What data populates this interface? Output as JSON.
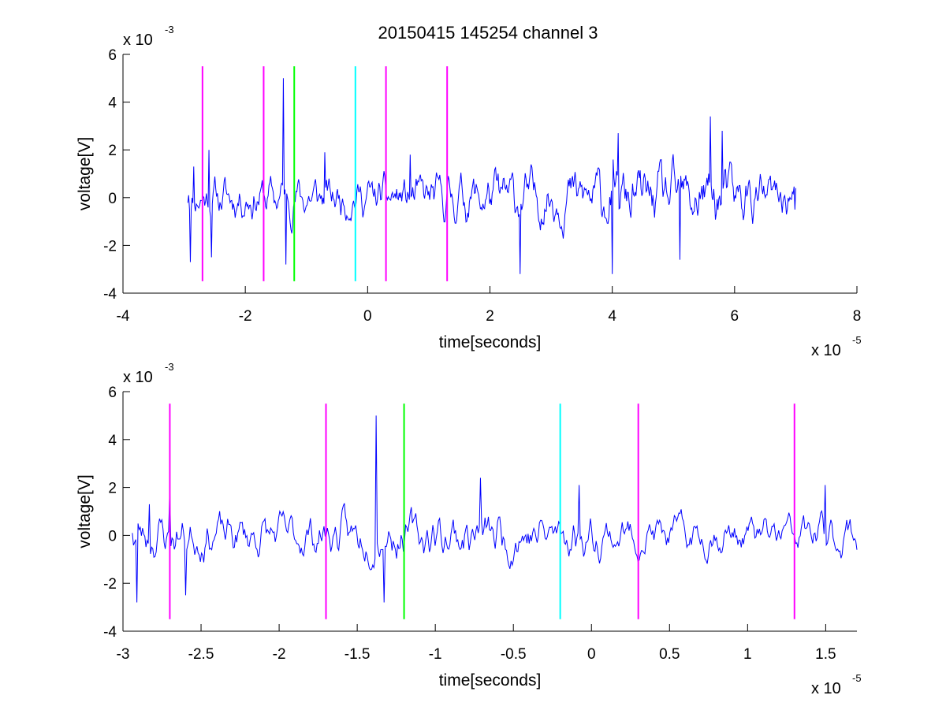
{
  "figure": {
    "title": "20150415 145254 channel 3"
  },
  "chart_data": [
    {
      "type": "line",
      "title": "20150415 145254 channel 3",
      "xlabel": "time[seconds]",
      "ylabel": "voltage[V]",
      "x_multiplier": "x 10",
      "x_exponent": "-5",
      "y_multiplier": "x 10",
      "y_exponent": "-3",
      "xlim": [
        -4,
        8
      ],
      "ylim": [
        -4,
        6
      ],
      "x_ticks": [
        -4,
        -2,
        0,
        2,
        4,
        6,
        8
      ],
      "x_tick_labels": [
        "-4",
        "-2",
        "0",
        "2",
        "4",
        "6",
        "8"
      ],
      "y_ticks": [
        -4,
        -2,
        0,
        2,
        4,
        6
      ],
      "y_tick_labels": [
        "-4",
        "-2",
        "0",
        "2",
        "4",
        "6"
      ],
      "grid": false,
      "series": [
        {
          "color": "#0000ff",
          "x_start": -2.94,
          "x_end": 7.0,
          "seed": 11,
          "points": 720,
          "envelope": [
            [
              -2.94,
              0.9
            ],
            [
              -2.0,
              1.0
            ],
            [
              -1.0,
              1.0
            ],
            [
              0.0,
              0.9
            ],
            [
              1.0,
              1.0
            ],
            [
              2.0,
              1.2
            ],
            [
              3.0,
              1.2
            ],
            [
              4.0,
              1.4
            ],
            [
              5.0,
              1.3
            ],
            [
              5.5,
              1.6
            ],
            [
              6.0,
              1.3
            ],
            [
              7.0,
              0.9
            ]
          ],
          "spikes": [
            [
              -2.92,
              0.1
            ],
            [
              -2.9,
              -2.7
            ],
            [
              -2.85,
              1.3
            ],
            [
              -2.6,
              2.0
            ],
            [
              -2.55,
              -2.5
            ],
            [
              -1.38,
              5.0
            ],
            [
              -1.33,
              -2.8
            ],
            [
              -0.7,
              1.9
            ],
            [
              0.7,
              1.8
            ],
            [
              2.5,
              -3.2
            ],
            [
              4.0,
              -3.2
            ],
            [
              4.1,
              2.7
            ],
            [
              5.1,
              -2.6
            ],
            [
              5.6,
              3.4
            ],
            [
              5.8,
              2.8
            ],
            [
              6.99,
              -0.5
            ]
          ]
        }
      ],
      "markers": [
        {
          "x": -2.7,
          "color": "#ff00ff",
          "y_range": [
            -3.5,
            5.5
          ]
        },
        {
          "x": -1.7,
          "color": "#ff00ff",
          "y_range": [
            -3.5,
            5.5
          ]
        },
        {
          "x": -1.2,
          "color": "#00ff00",
          "y_range": [
            -3.5,
            5.5
          ]
        },
        {
          "x": -0.2,
          "color": "#00ffff",
          "y_range": [
            -3.5,
            5.5
          ]
        },
        {
          "x": 0.3,
          "color": "#ff00ff",
          "y_range": [
            -3.5,
            5.5
          ]
        },
        {
          "x": 1.3,
          "color": "#ff00ff",
          "y_range": [
            -3.5,
            5.5
          ]
        }
      ]
    },
    {
      "type": "line",
      "title": "",
      "xlabel": "time[seconds]",
      "ylabel": "voltage[V]",
      "x_multiplier": "x 10",
      "x_exponent": "-5",
      "y_multiplier": "x 10",
      "y_exponent": "-3",
      "xlim": [
        -3.0,
        1.7
      ],
      "ylim": [
        -4,
        6
      ],
      "x_ticks": [
        -3,
        -2.5,
        -2,
        -1.5,
        -1,
        -0.5,
        0,
        0.5,
        1,
        1.5
      ],
      "x_tick_labels": [
        "-3",
        "-2.5",
        "-2",
        "-1.5",
        "-1",
        "-0.5",
        "0",
        "0.5",
        "1",
        "1.5"
      ],
      "y_ticks": [
        -4,
        -2,
        0,
        2,
        4,
        6
      ],
      "y_tick_labels": [
        "-4",
        "-2",
        "0",
        "2",
        "4",
        "6"
      ],
      "grid": false,
      "series": [
        {
          "color": "#0000ff",
          "x_start": -2.94,
          "x_end": 1.7,
          "seed": 23,
          "points": 640,
          "envelope": [
            [
              -2.94,
              1.0
            ],
            [
              -2.0,
              0.9
            ],
            [
              -1.0,
              1.0
            ],
            [
              -0.5,
              1.1
            ],
            [
              0.0,
              0.9
            ],
            [
              0.5,
              0.8
            ],
            [
              1.0,
              0.8
            ],
            [
              1.7,
              0.9
            ]
          ],
          "spikes": [
            [
              -2.94,
              0.1
            ],
            [
              -2.91,
              -2.8
            ],
            [
              -2.83,
              1.3
            ],
            [
              -2.7,
              2.0
            ],
            [
              -2.6,
              -2.5
            ],
            [
              -1.38,
              5.0
            ],
            [
              -1.33,
              -2.8
            ],
            [
              -0.71,
              2.4
            ],
            [
              -0.08,
              2.1
            ],
            [
              1.5,
              2.1
            ],
            [
              1.7,
              -0.6
            ]
          ]
        }
      ],
      "markers": [
        {
          "x": -2.7,
          "color": "#ff00ff",
          "y_range": [
            -3.5,
            5.5
          ]
        },
        {
          "x": -1.7,
          "color": "#ff00ff",
          "y_range": [
            -3.5,
            5.5
          ]
        },
        {
          "x": -1.2,
          "color": "#00ff00",
          "y_range": [
            -3.5,
            5.5
          ]
        },
        {
          "x": -0.2,
          "color": "#00ffff",
          "y_range": [
            -3.5,
            5.5
          ]
        },
        {
          "x": 0.3,
          "color": "#ff00ff",
          "y_range": [
            -3.5,
            5.5
          ]
        },
        {
          "x": 1.3,
          "color": "#ff00ff",
          "y_range": [
            -3.5,
            5.5
          ]
        }
      ]
    }
  ]
}
